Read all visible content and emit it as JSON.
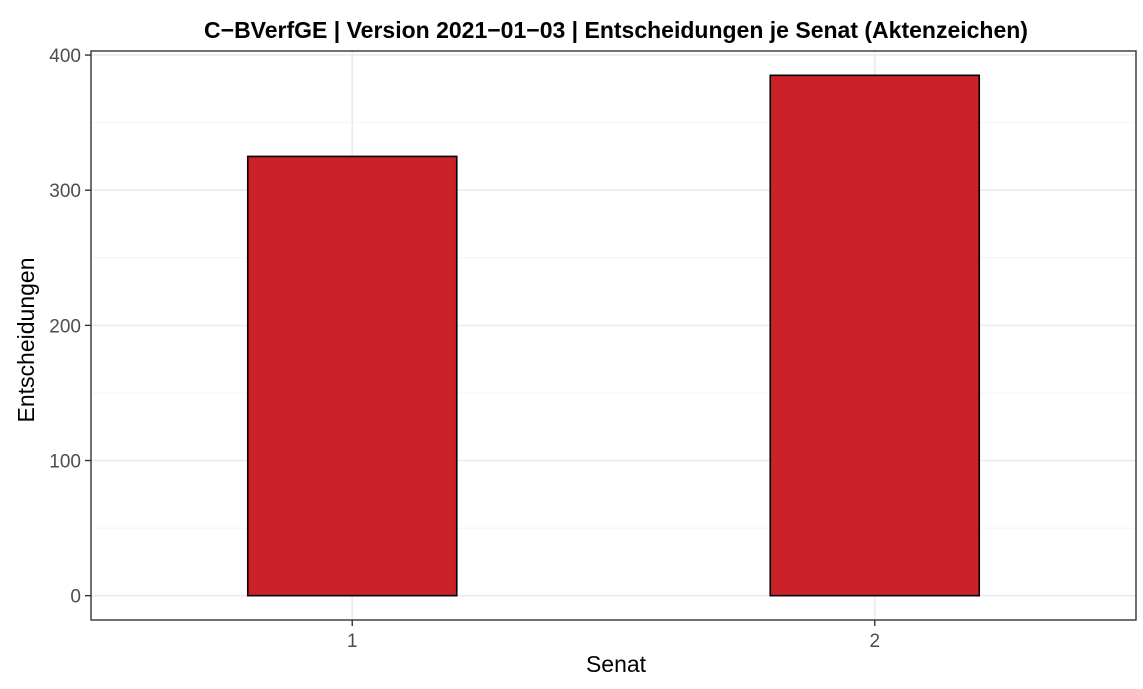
{
  "chart_data": {
    "type": "bar",
    "title": "C−BVerfGE | Version 2021−01−03 | Entscheidungen je Senat (Aktenzeichen)",
    "xlabel": "Senat",
    "ylabel": "Entscheidungen",
    "categories": [
      "1",
      "2"
    ],
    "values": [
      325,
      385
    ],
    "ylim": [
      -18,
      403
    ],
    "yticks": [
      0,
      100,
      200,
      300,
      400
    ],
    "grid": true,
    "legend": "none",
    "colors": {
      "bar_fill": "#CB2229",
      "bar_stroke": "#000000",
      "grid_major": "#EBEBEB",
      "grid_minor": "#F4F4F4",
      "panel_border": "#333333",
      "tick_label": "#4D4D4D",
      "axis_title": "#000000"
    }
  }
}
